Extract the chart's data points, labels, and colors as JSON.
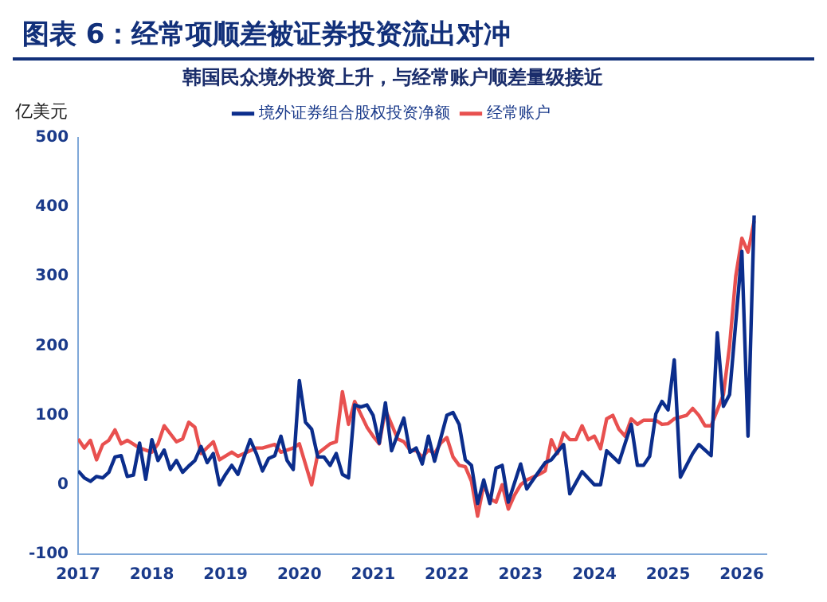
{
  "chart_data": {
    "type": "line",
    "title": "图表 6：经常项顺差被证券投资流出对冲",
    "subtitle": "韩国民众境外投资上升，与经常账户顺差量级接近",
    "ylabel": "亿美元",
    "xlim": [
      "2017-01",
      "2026-05"
    ],
    "xticks": [
      "2017",
      "2018",
      "2019",
      "2020",
      "2021",
      "2022",
      "2023",
      "2024",
      "2025",
      "2026"
    ],
    "ylim": [
      -100,
      500
    ],
    "yticks": [
      -100,
      0,
      100,
      200,
      300,
      400,
      500
    ],
    "grid": false,
    "legend": "top",
    "marker": "none",
    "line_style": "solid",
    "series": [
      {
        "name": "境外证券组合股权投资净额",
        "color": "#0b2d8c",
        "x": [
          "2017-01",
          "2017-02",
          "2017-03",
          "2017-04",
          "2017-05",
          "2017-06",
          "2017-07",
          "2017-08",
          "2017-09",
          "2017-10",
          "2017-11",
          "2017-12",
          "2018-01",
          "2018-02",
          "2018-03",
          "2018-04",
          "2018-05",
          "2018-06",
          "2018-07",
          "2018-08",
          "2018-09",
          "2018-10",
          "2018-11",
          "2018-12",
          "2019-01",
          "2019-02",
          "2019-03",
          "2019-04",
          "2019-05",
          "2019-06",
          "2019-07",
          "2019-08",
          "2019-09",
          "2019-10",
          "2019-11",
          "2019-12",
          "2020-01",
          "2020-02",
          "2020-03",
          "2020-04",
          "2020-05",
          "2020-06",
          "2020-07",
          "2020-08",
          "2020-09",
          "2020-10",
          "2020-11",
          "2020-12",
          "2021-01",
          "2021-02",
          "2021-03",
          "2021-04",
          "2021-06",
          "2021-07",
          "2021-08",
          "2021-09",
          "2021-10",
          "2021-11",
          "2022-01",
          "2022-02",
          "2022-03",
          "2022-04",
          "2022-05",
          "2022-06",
          "2022-07",
          "2022-08",
          "2022-09",
          "2022-10",
          "2022-11",
          "2023-01",
          "2023-02",
          "2023-03",
          "2023-05",
          "2023-06",
          "2023-08",
          "2023-09",
          "2023-11",
          "2024-01",
          "2024-02",
          "2024-03",
          "2024-05",
          "2024-07",
          "2024-08",
          "2024-09",
          "2024-10",
          "2024-11",
          "2024-12",
          "2025-01",
          "2025-02",
          "2025-03",
          "2025-05",
          "2025-06",
          "2025-08",
          "2025-09",
          "2025-10",
          "2025-11",
          "2026-01",
          "2026-02",
          "2026-03"
        ],
        "values": [
          20,
          10,
          5,
          12,
          10,
          18,
          40,
          42,
          12,
          14,
          60,
          8,
          65,
          35,
          50,
          22,
          35,
          18,
          27,
          35,
          55,
          32,
          45,
          0,
          15,
          28,
          15,
          40,
          65,
          45,
          20,
          38,
          42,
          70,
          35,
          22,
          150,
          90,
          80,
          40,
          40,
          28,
          45,
          15,
          10,
          115,
          112,
          115,
          100,
          60,
          118,
          49,
          96,
          47,
          53,
          30,
          70,
          34,
          100,
          104,
          87,
          36,
          28,
          -27,
          7,
          -27,
          24,
          28,
          -25,
          30,
          -6,
          7,
          32,
          36,
          58,
          -13,
          19,
          0,
          0,
          49,
          32,
          87,
          28,
          28,
          41,
          102,
          120,
          108,
          180,
          11,
          45,
          58,
          42,
          219,
          113,
          130,
          336,
          70,
          388
        ]
      },
      {
        "name": "经常账户",
        "color": "#e8504f",
        "x": [
          "2017-01",
          "2017-02",
          "2017-03",
          "2017-04",
          "2017-05",
          "2017-06",
          "2017-07",
          "2017-08",
          "2017-09",
          "2017-11",
          "2018-01",
          "2018-02",
          "2018-03",
          "2018-05",
          "2018-06",
          "2018-07",
          "2018-08",
          "2018-09",
          "2018-11",
          "2018-12",
          "2019-02",
          "2019-03",
          "2019-04",
          "2019-06",
          "2019-07",
          "2019-09",
          "2019-10",
          "2019-12",
          "2020-01",
          "2020-03",
          "2020-04",
          "2020-06",
          "2020-07",
          "2020-08",
          "2020-09",
          "2020-10",
          "2020-12",
          "2021-01",
          "2021-02",
          "2021-03",
          "2021-05",
          "2021-06",
          "2021-07",
          "2021-08",
          "2021-09",
          "2021-10",
          "2021-11",
          "2021-12",
          "2022-01",
          "2022-02",
          "2022-03",
          "2022-04",
          "2022-05",
          "2022-06",
          "2022-07",
          "2022-08",
          "2022-09",
          "2022-10",
          "2022-11",
          "2022-12",
          "2023-01",
          "2023-02",
          "2023-04",
          "2023-05",
          "2023-06",
          "2023-07",
          "2023-08",
          "2023-09",
          "2023-10",
          "2023-11",
          "2023-12",
          "2024-01",
          "2024-02",
          "2024-03",
          "2024-04",
          "2024-05",
          "2024-06",
          "2024-07",
          "2024-08",
          "2024-09",
          "2024-11",
          "2024-12",
          "2025-01",
          "2025-02",
          "2025-04",
          "2025-05",
          "2025-06",
          "2025-07",
          "2025-08",
          "2025-10",
          "2025-11",
          "2025-12",
          "2026-01",
          "2026-02",
          "2026-03"
        ],
        "values": [
          66,
          53,
          64,
          36,
          58,
          64,
          79,
          59,
          64,
          53,
          47,
          59,
          85,
          62,
          66,
          90,
          83,
          45,
          62,
          36,
          47,
          41,
          45,
          53,
          53,
          58,
          47,
          53,
          59,
          0,
          45,
          59,
          62,
          134,
          87,
          120,
          83,
          70,
          59,
          108,
          66,
          62,
          50,
          49,
          40,
          50,
          45,
          60,
          68,
          40,
          28,
          26,
          5,
          -45,
          0,
          -20,
          -25,
          0,
          -35,
          -15,
          0,
          7,
          15,
          20,
          65,
          45,
          75,
          65,
          65,
          85,
          65,
          70,
          52,
          95,
          100,
          80,
          70,
          95,
          87,
          93,
          93,
          87,
          88,
          95,
          100,
          110,
          100,
          85,
          85,
          130,
          200,
          300,
          355,
          335,
          380
        ]
      }
    ]
  }
}
